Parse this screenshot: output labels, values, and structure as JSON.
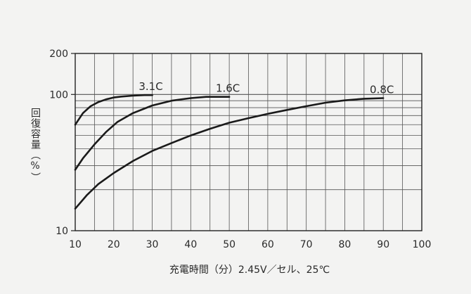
{
  "chart_data": {
    "type": "line",
    "title": "",
    "xlabel": "充電時間（分）2.45V／セル、25℃",
    "ylabel": "回復容量（%）",
    "xlim": [
      10,
      100
    ],
    "ylim": [
      10,
      200
    ],
    "yscale": "log",
    "x_ticks": [
      "10",
      "20",
      "30",
      "40",
      "50",
      "60",
      "70",
      "80",
      "90",
      "100"
    ],
    "y_ticks": [
      "10",
      "100",
      "200"
    ],
    "grid": true,
    "legend": "labels at curve ends",
    "series": [
      {
        "name": "3.1C",
        "points": [
          [
            10,
            60
          ],
          [
            12,
            73
          ],
          [
            14,
            82
          ],
          [
            16,
            88
          ],
          [
            18,
            92
          ],
          [
            20,
            95
          ],
          [
            22,
            96.5
          ],
          [
            25,
            98
          ],
          [
            28,
            99
          ],
          [
            30,
            99
          ]
        ]
      },
      {
        "name": "1.6C",
        "points": [
          [
            10,
            28
          ],
          [
            12,
            34
          ],
          [
            15,
            43
          ],
          [
            18,
            53
          ],
          [
            21,
            63
          ],
          [
            25,
            73
          ],
          [
            30,
            83
          ],
          [
            35,
            90
          ],
          [
            40,
            94
          ],
          [
            44,
            96
          ],
          [
            47,
            96
          ],
          [
            50,
            96
          ]
        ]
      },
      {
        "name": "0.8C",
        "points": [
          [
            10,
            14.5
          ],
          [
            13,
            18.2
          ],
          [
            16,
            22
          ],
          [
            20,
            26.5
          ],
          [
            25,
            32.5
          ],
          [
            30,
            38.5
          ],
          [
            35,
            44
          ],
          [
            40,
            50
          ],
          [
            45,
            56
          ],
          [
            50,
            62
          ],
          [
            55,
            67
          ],
          [
            60,
            72
          ],
          [
            65,
            77
          ],
          [
            70,
            82
          ],
          [
            75,
            87
          ],
          [
            80,
            90.5
          ],
          [
            85,
            93
          ],
          [
            90,
            94
          ]
        ]
      }
    ],
    "colors": {
      "background": "#f3f3f2",
      "line": "#1a1a1a",
      "grid": "#555555",
      "text": "#2a2a2a"
    }
  }
}
